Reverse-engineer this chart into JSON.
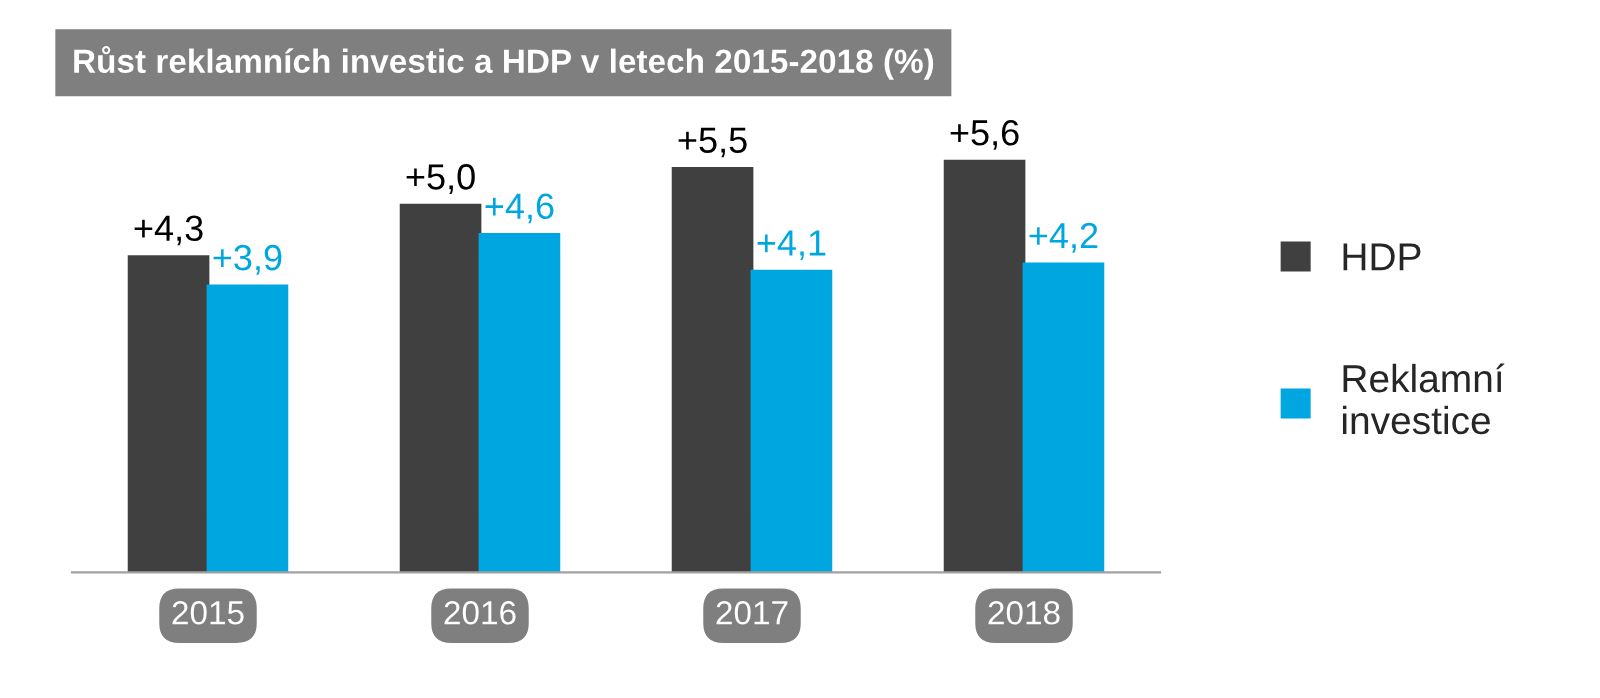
{
  "chart_data": {
    "type": "bar",
    "title": "Růst reklamních investic a HDP v letech 2015-2018 (%)",
    "categories": [
      "2015",
      "2016",
      "2017",
      "2018"
    ],
    "series": [
      {
        "name": "HDP",
        "color": "#404040",
        "values": [
          4.3,
          5.0,
          5.5,
          5.6
        ],
        "value_labels": [
          "+4,3",
          "+5,0",
          "+5,5",
          "+5,6"
        ]
      },
      {
        "name": "Reklamní\ninvestice",
        "color": "#00a6e0",
        "values": [
          3.9,
          4.6,
          4.1,
          4.2
        ],
        "value_labels": [
          "+3,9",
          "+4,6",
          "+4,1",
          "+4,2"
        ]
      }
    ],
    "legend": "right",
    "grid": false
  }
}
